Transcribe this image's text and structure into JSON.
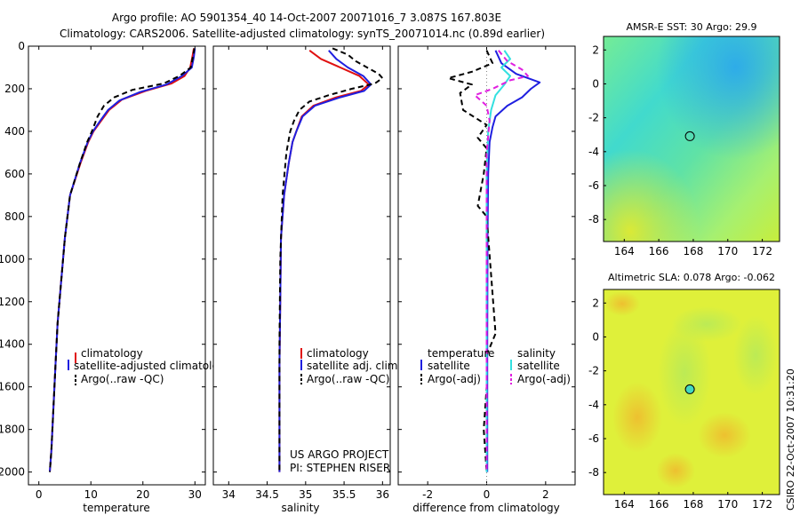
{
  "header": {
    "line1": "Argo profile: AO 5901354_40 14-Oct-2007 20071016_7 3.087S 167.803E",
    "line2": "Climatology: CARS2006. Satellite-adjusted climatology: synTS_20071014.nc (0.89d earlier)"
  },
  "footer": {
    "project": "US ARGO PROJECT",
    "pi": "PI: STEPHEN RISER",
    "stamp": "CSIRO 22-Oct-2007 10:31:20"
  },
  "colors": {
    "climatology": "#e01010",
    "satellite": "#1f1fe0",
    "argo": "#000000",
    "salinity_satellite": "#33e0e0",
    "salinity_argo": "#e020e0"
  },
  "chart_data": [
    {
      "type": "line",
      "name": "temperature-profile",
      "xlabel": "temperature",
      "ylabel": "",
      "xlim": [
        -2,
        32
      ],
      "ylim": [
        2060,
        0
      ],
      "y_reversed": true,
      "xticks": [
        "0",
        "10",
        "20",
        "30"
      ],
      "yticks": [
        "0",
        "200",
        "400",
        "600",
        "800",
        "1000",
        "1200",
        "1400",
        "1600",
        "1800",
        "2000"
      ],
      "legend": [
        "climatology",
        "satellite-adjusted climatology",
        "Argo(..raw -QC)"
      ],
      "legend_placement": "lower-right",
      "series": [
        {
          "name": "climatology",
          "x": [
            29.8,
            29.5,
            29.1,
            28.0,
            25.5,
            20.5,
            16.0,
            13.5,
            12.0,
            10.5,
            9.5,
            8.0,
            6.0,
            5.0,
            4.3,
            3.6,
            3.2,
            2.8,
            2.4,
            2.1
          ],
          "y": [
            10,
            50,
            100,
            140,
            175,
            210,
            250,
            300,
            350,
            400,
            450,
            550,
            700,
            900,
            1100,
            1300,
            1500,
            1700,
            1900,
            2000
          ]
        },
        {
          "name": "satellite-adjusted climatology",
          "x": [
            30.0,
            29.8,
            29.4,
            27.5,
            24.5,
            19.5,
            15.5,
            13.3,
            11.8,
            10.4,
            9.4,
            7.9,
            6.0,
            5.0,
            4.3,
            3.6,
            3.2,
            2.8,
            2.4,
            2.1
          ],
          "y": [
            10,
            50,
            100,
            140,
            180,
            215,
            255,
            300,
            350,
            400,
            450,
            550,
            700,
            900,
            1100,
            1300,
            1500,
            1700,
            1900,
            2000
          ]
        },
        {
          "name": "Argo(..raw -QC)",
          "x": [
            29.9,
            29.6,
            29.2,
            27.0,
            24.0,
            18.0,
            14.5,
            12.5,
            11.3,
            10.2,
            9.3,
            7.9,
            6.0,
            5.0,
            4.3,
            3.6,
            3.2,
            2.8,
            2.4,
            2.1
          ],
          "y": [
            10,
            50,
            100,
            140,
            175,
            205,
            240,
            280,
            330,
            400,
            450,
            550,
            700,
            900,
            1100,
            1300,
            1500,
            1700,
            1900,
            2000
          ]
        }
      ]
    },
    {
      "type": "line",
      "name": "salinity-profile",
      "xlabel": "salinity",
      "ylabel": "",
      "xlim": [
        33.8,
        36.1
      ],
      "ylim": [
        2060,
        0
      ],
      "y_reversed": true,
      "xticks": [
        "34",
        "34.5",
        "35",
        "35.5",
        "36"
      ],
      "legend": [
        "climatology",
        "satellite adj. clim.",
        "Argo(..raw -QC)"
      ],
      "legend_placement": "lower-right",
      "series": [
        {
          "name": "climatology",
          "x": [
            35.05,
            35.2,
            35.45,
            35.7,
            35.82,
            35.72,
            35.4,
            35.1,
            34.95,
            34.88,
            34.83,
            34.78,
            34.72,
            34.68,
            34.67,
            34.66,
            34.66,
            34.66
          ],
          "y": [
            20,
            60,
            100,
            140,
            180,
            210,
            240,
            280,
            330,
            400,
            450,
            550,
            700,
            900,
            1200,
            1500,
            1800,
            2000
          ]
        },
        {
          "name": "satellite adj. clim.",
          "x": [
            35.3,
            35.4,
            35.55,
            35.75,
            35.85,
            35.76,
            35.45,
            35.12,
            34.96,
            34.88,
            34.83,
            34.78,
            34.72,
            34.68,
            34.67,
            34.66,
            34.66,
            34.66
          ],
          "y": [
            20,
            60,
            100,
            140,
            180,
            210,
            240,
            280,
            330,
            400,
            450,
            550,
            700,
            900,
            1200,
            1500,
            1800,
            2000
          ]
        },
        {
          "name": "Argo(..raw -QC)",
          "x": [
            35.35,
            35.55,
            35.65,
            35.8,
            35.95,
            36.0,
            35.9,
            35.6,
            35.3,
            35.05,
            34.92,
            34.85,
            34.8,
            34.75,
            34.7,
            34.67,
            34.66,
            34.66,
            34.66
          ],
          "y": [
            10,
            40,
            70,
            100,
            130,
            150,
            175,
            200,
            230,
            260,
            300,
            350,
            400,
            500,
            700,
            1000,
            1400,
            1800,
            2000
          ]
        }
      ]
    },
    {
      "type": "line",
      "name": "difference-profile",
      "xlabel": "difference from climatology",
      "ylabel": "",
      "xlim": [
        -3,
        3
      ],
      "ylim": [
        2060,
        0
      ],
      "y_reversed": true,
      "xticks": [
        "-2",
        "0",
        "2"
      ],
      "legend_groups": [
        {
          "title": "temperature",
          "entries": [
            "satellite",
            "Argo(-adj)"
          ]
        },
        {
          "title": "salinity",
          "entries": [
            "satellite",
            "Argo(-adj)"
          ]
        }
      ],
      "legend_placement": "lower",
      "series": [
        {
          "name": "temperature satellite",
          "x": [
            0.3,
            0.5,
            1.0,
            1.8,
            1.5,
            1.2,
            0.7,
            0.3,
            0.2,
            0.1,
            0.05,
            0.03,
            0.02,
            0.02
          ],
          "y": [
            20,
            80,
            130,
            170,
            200,
            240,
            280,
            330,
            380,
            450,
            600,
            900,
            1400,
            2000
          ]
        },
        {
          "name": "temperature Argo(-adj)",
          "x": [
            0.0,
            0.2,
            -0.5,
            -1.3,
            -0.5,
            -0.9,
            -0.8,
            0.0,
            -0.3,
            0.0,
            -0.1,
            -0.3,
            0.0,
            0.3,
            0.0,
            0.0,
            -0.1,
            0.0
          ],
          "y": [
            20,
            80,
            120,
            150,
            180,
            220,
            300,
            370,
            430,
            480,
            600,
            750,
            800,
            1350,
            1450,
            1600,
            1800,
            2000
          ]
        },
        {
          "name": "salinity satellite",
          "x": [
            0.6,
            0.8,
            0.5,
            0.8,
            0.6,
            0.3,
            0.15,
            0.05,
            0.0,
            0.0,
            0.0,
            0.0
          ],
          "y": [
            20,
            60,
            100,
            140,
            180,
            230,
            300,
            400,
            600,
            1000,
            1500,
            2000
          ]
        },
        {
          "name": "salinity Argo(-adj)",
          "x": [
            0.4,
            0.7,
            1.2,
            1.4,
            0.8,
            0.2,
            -0.4,
            0.0,
            0.1,
            0.0,
            0.0,
            0.0
          ],
          "y": [
            20,
            70,
            110,
            140,
            160,
            200,
            230,
            280,
            350,
            500,
            1000,
            2000
          ]
        }
      ]
    },
    {
      "type": "heatmap",
      "name": "sst-map",
      "title": "AMSR-E SST: 30 Argo: 29.9",
      "xlim": [
        162.8,
        173
      ],
      "ylim": [
        -9.3,
        2.8
      ],
      "xticks": [
        "164",
        "166",
        "168",
        "170",
        "172"
      ],
      "yticks": [
        "2",
        "0",
        "-2",
        "-4",
        "-6",
        "-8"
      ],
      "argo_position": {
        "lon": 167.803,
        "lat": -3.087
      }
    },
    {
      "type": "heatmap",
      "name": "sla-map",
      "title": "Altimetric SLA: 0.078 Argo: -0.062",
      "xlim": [
        162.8,
        173
      ],
      "ylim": [
        -9.3,
        2.8
      ],
      "xticks": [
        "164",
        "166",
        "168",
        "170",
        "172"
      ],
      "yticks": [
        "2",
        "0",
        "-2",
        "-4",
        "-6",
        "-8"
      ],
      "argo_position": {
        "lon": 167.803,
        "lat": -3.087
      }
    }
  ]
}
